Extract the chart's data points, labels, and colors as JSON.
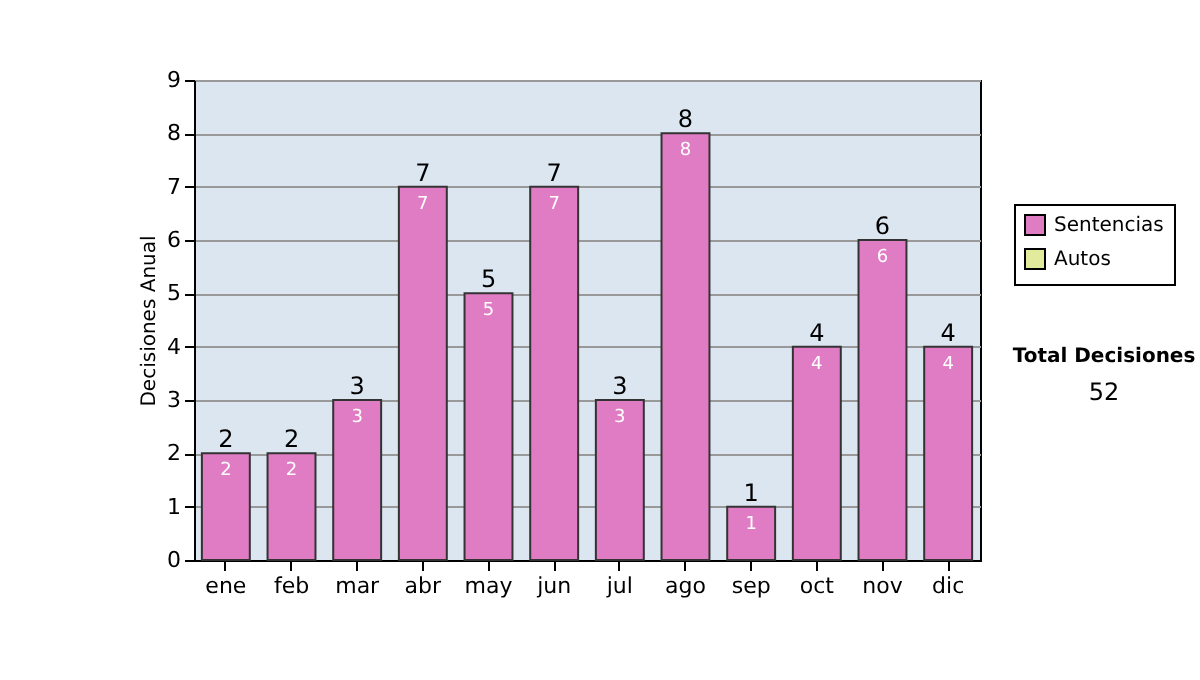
{
  "chart_data": {
    "type": "bar",
    "ylabel": "Decisiones Anual",
    "categories": [
      "ene",
      "feb",
      "mar",
      "abr",
      "may",
      "jun",
      "jul",
      "ago",
      "sep",
      "oct",
      "nov",
      "dic"
    ],
    "series": [
      {
        "name": "Sentencias",
        "color": "#e07cc4",
        "values": [
          2,
          2,
          3,
          7,
          5,
          7,
          3,
          8,
          1,
          4,
          6,
          4
        ],
        "value_labels": [
          "2",
          "2",
          "3",
          "7",
          "5",
          "7",
          "3",
          "8",
          "1",
          "4",
          "6",
          "4"
        ]
      },
      {
        "name": "Autos",
        "color": "#e2ea9c",
        "values": [
          null,
          null,
          null,
          null,
          null,
          null,
          null,
          null,
          null,
          null,
          null,
          null
        ]
      }
    ],
    "ylim": [
      0,
      9
    ],
    "yticks": [
      0,
      1,
      2,
      3,
      4,
      5,
      6,
      7,
      8,
      9
    ],
    "grid": "y",
    "legend": "right",
    "totals": [
      "2",
      "2",
      "3",
      "7",
      "5",
      "7",
      "3",
      "8",
      "1",
      "4",
      "6",
      "4"
    ],
    "annotations": [
      "Total Decisiones",
      "52"
    ]
  }
}
